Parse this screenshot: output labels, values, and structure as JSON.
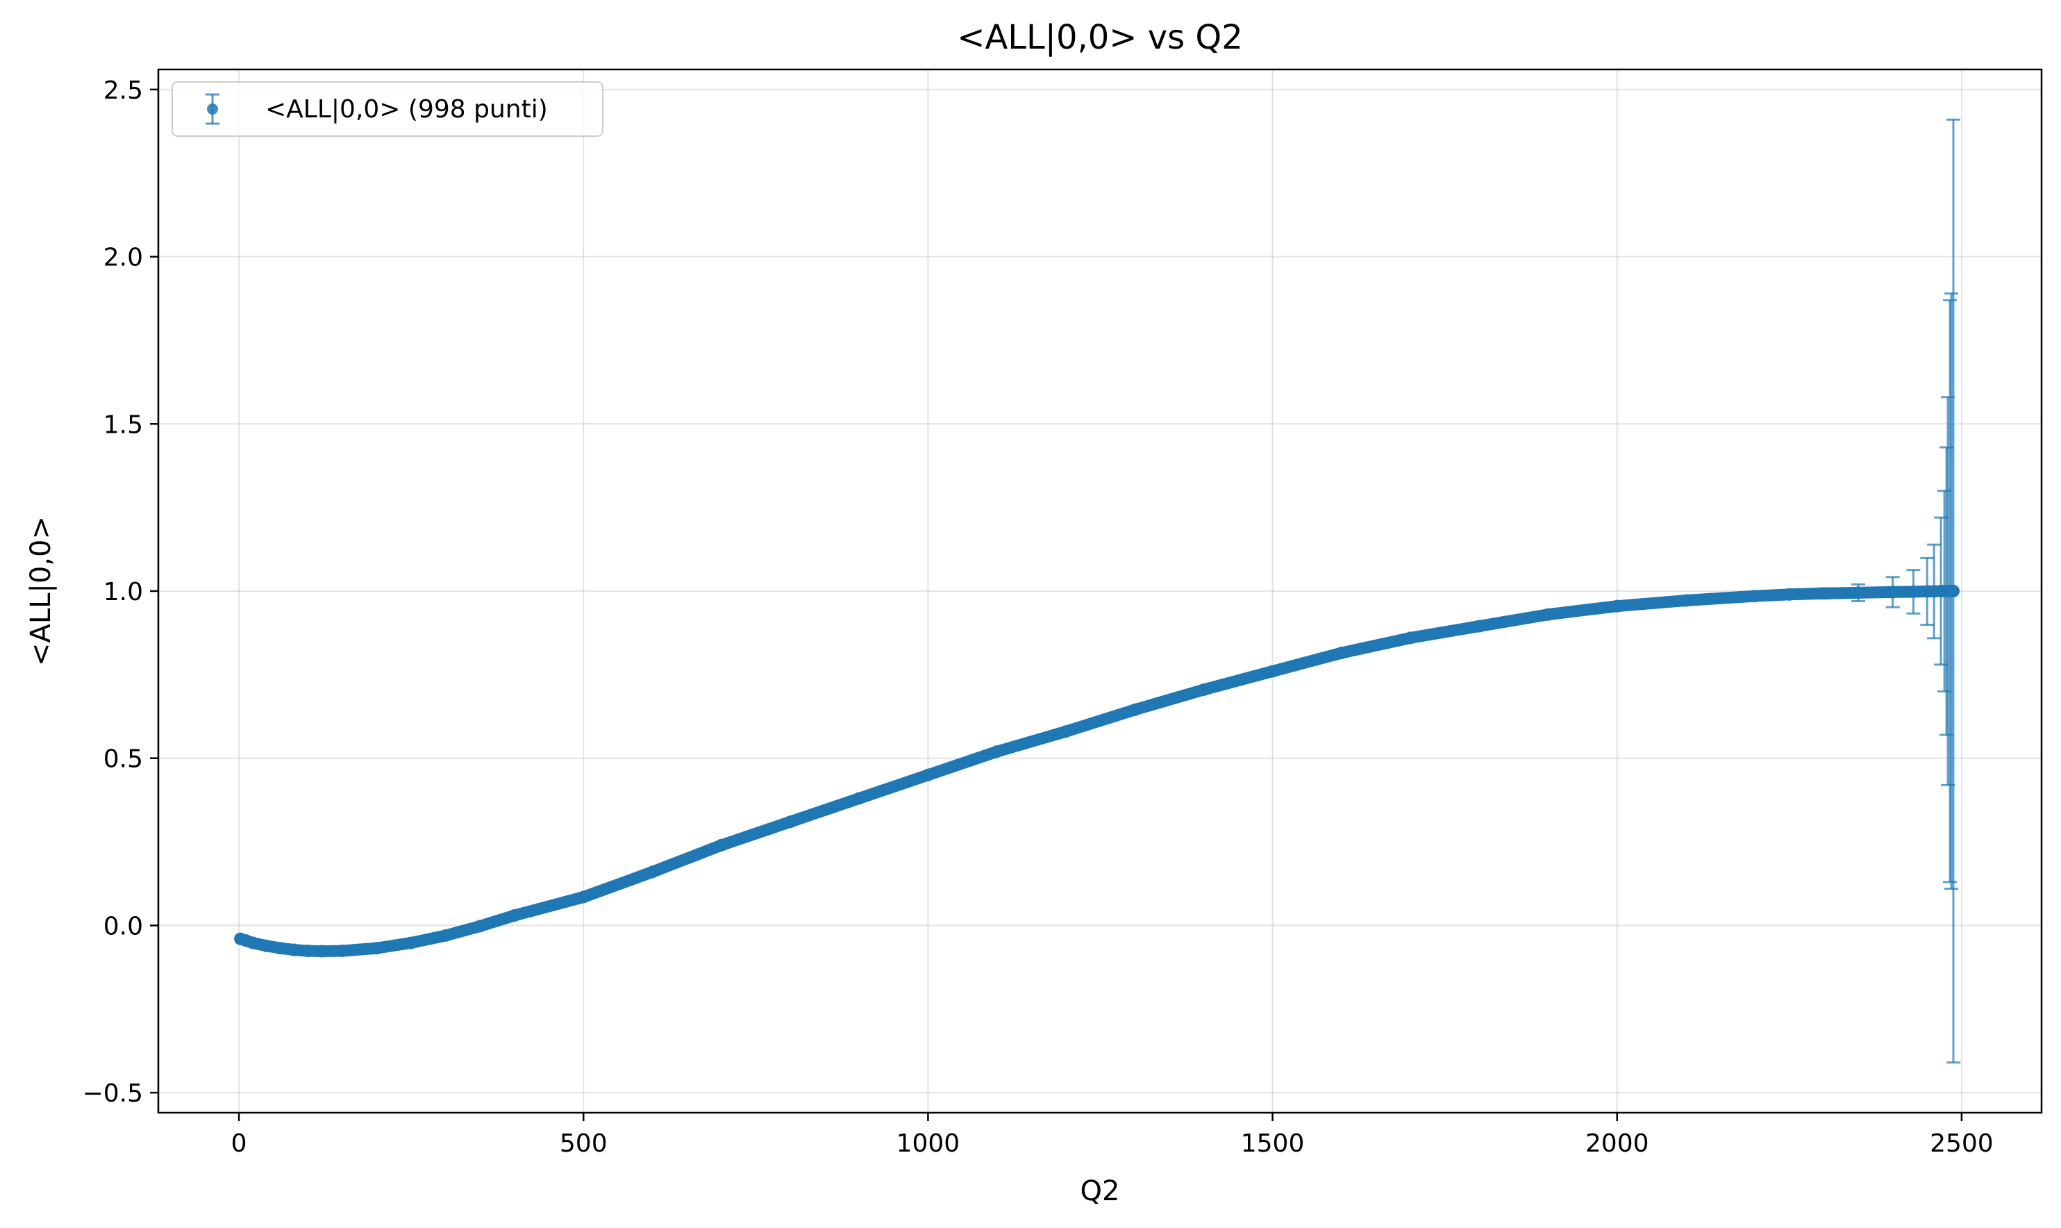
{
  "chart_data": {
    "type": "scatter",
    "title": "<ALL|0,0> vs Q2",
    "xlabel": "Q2",
    "ylabel": "<ALL|0,0>",
    "xlim": [
      -117,
      2616
    ],
    "ylim": [
      -0.56,
      2.56
    ],
    "x_ticks": [
      0,
      500,
      1000,
      1500,
      2000,
      2500
    ],
    "x_tick_labels": [
      "0",
      "500",
      "1000",
      "1500",
      "2000",
      "2500"
    ],
    "y_ticks": [
      -0.5,
      0.0,
      0.5,
      1.0,
      1.5,
      2.0,
      2.5
    ],
    "y_tick_labels": [
      "−0.5",
      "0.0",
      "0.5",
      "1.0",
      "1.5",
      "2.0",
      "2.5"
    ],
    "grid": true,
    "legend_position": "top-left",
    "series": [
      {
        "name": "<ALL|0,0> (998 punti)",
        "color": "#1f77b4",
        "marker": "circle",
        "n_points": 998,
        "x": [
          2,
          10,
          20,
          40,
          60,
          80,
          100,
          120,
          150,
          200,
          250,
          300,
          350,
          400,
          500,
          600,
          700,
          800,
          900,
          1000,
          1100,
          1200,
          1300,
          1400,
          1500,
          1600,
          1700,
          1800,
          1900,
          2000,
          2100,
          2200,
          2250,
          2300,
          2350,
          2400,
          2430,
          2450,
          2460,
          2470,
          2475,
          2478,
          2480,
          2483,
          2485,
          2488
        ],
        "y": [
          -0.04,
          -0.045,
          -0.052,
          -0.061,
          -0.068,
          -0.073,
          -0.076,
          -0.077,
          -0.076,
          -0.068,
          -0.052,
          -0.03,
          -0.002,
          0.03,
          0.085,
          0.16,
          0.24,
          0.31,
          0.38,
          0.45,
          0.52,
          0.58,
          0.645,
          0.705,
          0.76,
          0.815,
          0.86,
          0.895,
          0.93,
          0.955,
          0.972,
          0.985,
          0.99,
          0.993,
          0.995,
          0.997,
          0.998,
          0.999,
          0.999,
          1.0,
          1.0,
          1.0,
          1.0,
          1.0,
          1.0,
          1.0
        ],
        "yerr": [
          0.004,
          0.004,
          0.004,
          0.004,
          0.004,
          0.004,
          0.004,
          0.004,
          0.004,
          0.004,
          0.004,
          0.004,
          0.004,
          0.004,
          0.004,
          0.004,
          0.004,
          0.004,
          0.004,
          0.004,
          0.004,
          0.004,
          0.004,
          0.004,
          0.004,
          0.004,
          0.004,
          0.004,
          0.004,
          0.004,
          0.005,
          0.006,
          0.01,
          0.015,
          0.025,
          0.045,
          0.065,
          0.1,
          0.14,
          0.22,
          0.3,
          0.43,
          0.58,
          0.87,
          0.89,
          1.41
        ]
      }
    ]
  }
}
